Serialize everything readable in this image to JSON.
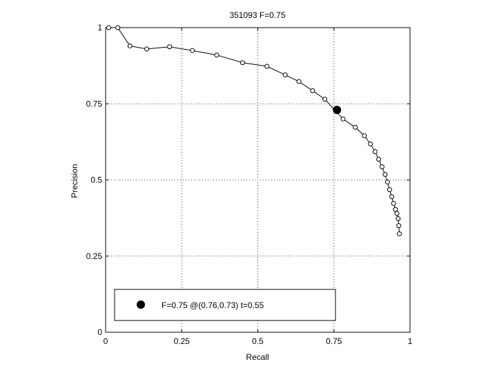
{
  "chart_data": {
    "type": "line",
    "title": "351093 F=0.75",
    "xlabel": "Recall",
    "ylabel": "Precision",
    "xlim": [
      0,
      1
    ],
    "ylim": [
      0,
      1
    ],
    "xticks": [
      "0",
      "0.25",
      "0.5",
      "0.75",
      "1"
    ],
    "yticks": [
      "0",
      "0.25",
      "0.5",
      "0.75",
      "1"
    ],
    "grid": true,
    "legend_position": "bottom-left",
    "series": [
      {
        "x": [
          0.01,
          0.04,
          0.08,
          0.135,
          0.21,
          0.285,
          0.365,
          0.45,
          0.53,
          0.59,
          0.635,
          0.68,
          0.72,
          0.78,
          0.82,
          0.85,
          0.87,
          0.885,
          0.897,
          0.908,
          0.918,
          0.926,
          0.933,
          0.94,
          0.946,
          0.952,
          0.957,
          0.961,
          0.963,
          0.965
        ],
        "y": [
          1.0,
          1.0,
          0.94,
          0.93,
          0.937,
          0.925,
          0.91,
          0.885,
          0.873,
          0.845,
          0.823,
          0.793,
          0.765,
          0.7,
          0.673,
          0.645,
          0.618,
          0.593,
          0.568,
          0.543,
          0.518,
          0.493,
          0.468,
          0.445,
          0.423,
          0.403,
          0.39,
          0.373,
          0.35,
          0.323
        ],
        "marker": "open-circle",
        "color": "#000000"
      }
    ],
    "highlight": {
      "label": "F=0.75 @(0.76,0.73) t=0.55",
      "x": 0.76,
      "y": 0.73,
      "marker": "filled-circle",
      "color": "#000000"
    }
  }
}
